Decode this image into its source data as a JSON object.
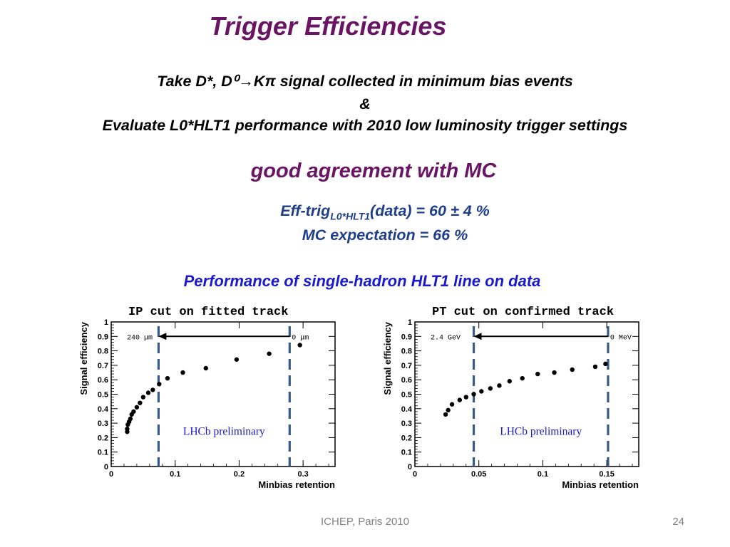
{
  "slide": {
    "title": "Trigger Efficiencies",
    "intro_line1": "Take D*, D⁰→Kπ signal collected in minimum bias events",
    "intro_line2": "&",
    "intro_line3": "Evaluate L0*HLT1 performance with 2010 low luminosity trigger settings",
    "agreement": "good agreement with MC",
    "eff_prefix": "Eff-trig",
    "eff_sub": "L0*HLT1",
    "eff_suffix": "(data) = 60 ± 4 %",
    "mc_expectation": "MC expectation = 66 %",
    "performance_heading": "Performance of single-hadron HLT1 line on data",
    "footer": "ICHEP, Paris 2010",
    "page_number": "24"
  },
  "colors": {
    "title": "#6a1464",
    "effText": "#1f3f8c",
    "heading": "#1a1acd",
    "dashed": "#3a5a8a"
  },
  "chart_data": [
    {
      "type": "scatter",
      "title": "IP cut on fitted track",
      "xlabel": "Minbias retention",
      "ylabel": "Signal efficiency",
      "xlim": [
        0,
        0.35
      ],
      "ylim": [
        0,
        1
      ],
      "xticks": [
        "0",
        "0.1",
        "0.2",
        "0.3"
      ],
      "xtick_values": [
        0,
        0.1,
        0.2,
        0.3
      ],
      "yticks": [
        "0",
        "0.1",
        "0.2",
        "0.3",
        "0.4",
        "0.5",
        "0.6",
        "0.7",
        "0.8",
        "0.9",
        "1"
      ],
      "ytick_values": [
        0,
        0.1,
        0.2,
        0.3,
        0.4,
        0.5,
        0.6,
        0.7,
        0.8,
        0.9,
        1
      ],
      "points": [
        [
          0.025,
          0.24
        ],
        [
          0.025,
          0.26
        ],
        [
          0.026,
          0.29
        ],
        [
          0.028,
          0.31
        ],
        [
          0.03,
          0.33
        ],
        [
          0.032,
          0.36
        ],
        [
          0.035,
          0.38
        ],
        [
          0.04,
          0.41
        ],
        [
          0.045,
          0.44
        ],
        [
          0.05,
          0.48
        ],
        [
          0.058,
          0.51
        ],
        [
          0.065,
          0.53
        ],
        [
          0.075,
          0.57
        ],
        [
          0.088,
          0.61
        ],
        [
          0.112,
          0.65
        ],
        [
          0.148,
          0.68
        ],
        [
          0.196,
          0.74
        ],
        [
          0.247,
          0.78
        ],
        [
          0.295,
          0.84
        ]
      ],
      "cut_lines": [
        0.074,
        0.279
      ],
      "arrow": {
        "from": 0.279,
        "to": 0.074,
        "y": 0.9,
        "left_label": "240 μm",
        "right_label": "0 μm"
      },
      "annotation": "LHCb preliminary"
    },
    {
      "type": "scatter",
      "title": "PT cut on confirmed track",
      "xlabel": "Minbias retention",
      "ylabel": "Signal efficiency",
      "xlim": [
        0,
        0.175
      ],
      "ylim": [
        0,
        1
      ],
      "xticks": [
        "0",
        "0.05",
        "0.1",
        "0.15"
      ],
      "xtick_values": [
        0,
        0.05,
        0.1,
        0.15
      ],
      "yticks": [
        "0",
        "0.1",
        "0.2",
        "0.3",
        "0.4",
        "0.5",
        "0.6",
        "0.7",
        "0.8",
        "0.9",
        "1"
      ],
      "ytick_values": [
        0,
        0.1,
        0.2,
        0.3,
        0.4,
        0.5,
        0.6,
        0.7,
        0.8,
        0.9,
        1
      ],
      "points": [
        [
          0.024,
          0.36
        ],
        [
          0.026,
          0.39
        ],
        [
          0.029,
          0.43
        ],
        [
          0.035,
          0.46
        ],
        [
          0.04,
          0.48
        ],
        [
          0.046,
          0.5
        ],
        [
          0.052,
          0.52
        ],
        [
          0.059,
          0.54
        ],
        [
          0.066,
          0.56
        ],
        [
          0.074,
          0.59
        ],
        [
          0.084,
          0.61
        ],
        [
          0.096,
          0.64
        ],
        [
          0.109,
          0.65
        ],
        [
          0.123,
          0.67
        ],
        [
          0.141,
          0.69
        ],
        [
          0.149,
          0.71
        ]
      ],
      "cut_lines": [
        0.046,
        0.151
      ],
      "arrow": {
        "from": 0.151,
        "to": 0.046,
        "y": 0.9,
        "left_label": "2.4 GeV",
        "right_label": "0 MeV"
      },
      "annotation": "LHCb preliminary"
    }
  ]
}
